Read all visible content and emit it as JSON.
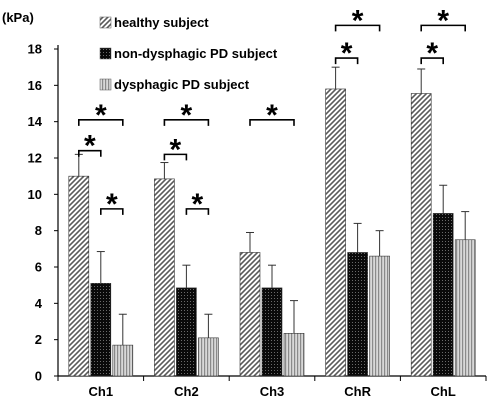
{
  "chart_data": {
    "type": "bar",
    "unit_label": "(kPa)",
    "categories": [
      "Ch1",
      "Ch2",
      "Ch3",
      "ChR",
      "ChL"
    ],
    "ylim": [
      0,
      18
    ],
    "yticks": [
      0,
      2,
      4,
      6,
      8,
      10,
      12,
      14,
      16,
      18
    ],
    "grid": false,
    "legend_position": "top",
    "series": [
      {
        "name": "healthy subject",
        "pattern": "diagonal-hatch",
        "values": [
          11.0,
          10.85,
          6.8,
          15.8,
          15.55
        ],
        "error": [
          1.2,
          0.9,
          1.1,
          1.2,
          1.35
        ]
      },
      {
        "name": "non-dysphagic PD subject",
        "pattern": "black-dotted",
        "values": [
          5.1,
          4.85,
          4.85,
          6.8,
          8.95
        ],
        "error": [
          1.75,
          1.25,
          1.25,
          1.6,
          1.55
        ]
      },
      {
        "name": "dysphagic PD subject",
        "pattern": "vertical-stripes",
        "values": [
          1.7,
          2.1,
          2.35,
          6.6,
          7.5
        ],
        "error": [
          1.7,
          1.3,
          1.8,
          1.4,
          1.55
        ]
      }
    ],
    "annotations": [
      {
        "label": "*",
        "group": 0,
        "from_series": 0,
        "to_series": 1,
        "level": 12.4
      },
      {
        "label": "*",
        "group": 0,
        "from_series": 0,
        "to_series": 2,
        "level": 14.1
      },
      {
        "label": "*",
        "group": 0,
        "from_series": 1,
        "to_series": 2,
        "level": 9.2
      },
      {
        "label": "*",
        "group": 1,
        "from_series": 0,
        "to_series": 1,
        "level": 12.2
      },
      {
        "label": "*",
        "group": 1,
        "from_series": 0,
        "to_series": 2,
        "level": 14.1
      },
      {
        "label": "*",
        "group": 1,
        "from_series": 1,
        "to_series": 2,
        "level": 9.2
      },
      {
        "label": "*",
        "group": 2,
        "from_series": 0,
        "to_series": 2,
        "level": 14.1
      },
      {
        "label": "*",
        "group": 3,
        "from_series": 0,
        "to_series": 1,
        "level": 17.5
      },
      {
        "label": "*",
        "group": 3,
        "from_series": 0,
        "to_series": 2,
        "level": 19.3
      },
      {
        "label": "*",
        "group": 4,
        "from_series": 0,
        "to_series": 1,
        "level": 17.5
      },
      {
        "label": "*",
        "group": 4,
        "from_series": 0,
        "to_series": 2,
        "level": 19.3
      }
    ]
  }
}
